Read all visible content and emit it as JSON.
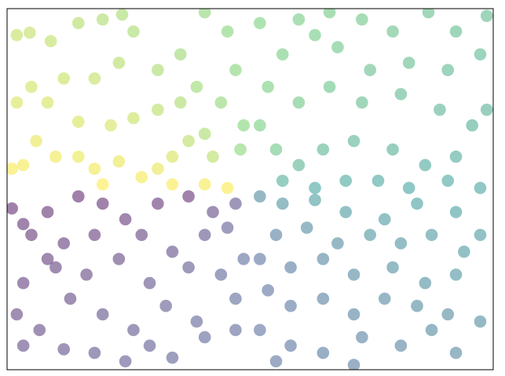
{
  "chart_data": {
    "type": "scatter",
    "colormap": "viridis",
    "alpha": 0.5,
    "xlim": [
      -1.5,
      1.5
    ],
    "ylim": [
      -1.5,
      1.5
    ],
    "x": [
      -1.44,
      -1.36,
      -1.23,
      -1.06,
      -0.91,
      -0.79,
      -0.72,
      -0.81,
      -0.96,
      -1.15,
      -1.35,
      -1.44,
      -1.25,
      -1.06,
      -0.86,
      -0.72,
      -0.57,
      -0.43,
      -0.33,
      -0.57,
      -0.43,
      -0.28,
      -0.14,
      -0.09,
      -0.18,
      -0.28,
      -0.38,
      -0.48,
      -0.57,
      -0.67,
      -0.81,
      -0.96,
      -1.06,
      -1.2,
      -1.32,
      -1.4,
      -1.47,
      -0.91,
      -0.48,
      -0.14,
      -0.28,
      -0.23,
      -0.06,
      -0.04,
      0.06,
      0.3,
      0.49,
      0.69,
      0.88,
      1.1,
      1.27,
      1.42,
      1.22,
      0.98,
      0.74,
      0.54,
      0.4,
      0.2,
      0.11,
      0.3,
      0.49,
      0.69,
      0.93,
      1.17,
      1.37,
      1.27,
      1.08,
      0.88,
      0.64,
      0.45,
      0.3,
      0.16,
      0.06,
      0.2,
      0.4,
      0.59,
      0.79,
      0.98,
      1.22,
      1.42,
      1.46,
      1.46,
      -1.47,
      -1.4,
      -1.25,
      -1.06,
      -0.91,
      -0.77,
      -0.57,
      -0.38,
      -0.23,
      -0.09,
      -1.35,
      -1.15,
      -0.96,
      -0.67,
      -0.48,
      -0.28,
      -0.14,
      -1.4,
      -1.2,
      -1.01,
      -0.81,
      -0.62,
      -0.38,
      -0.18,
      -0.04,
      -1.44,
      -1.3,
      -1.11,
      -0.91,
      -0.72,
      -0.52,
      -0.33,
      -0.09,
      -1.4,
      -1.15,
      -0.96,
      -0.77,
      -0.48,
      -0.28,
      -0.09,
      -0.62,
      -1.25,
      0.06,
      0.2,
      0.4,
      0.59,
      0.83,
      1.03,
      1.27,
      1.42,
      1.32,
      1.12,
      0.93,
      0.74,
      0.54,
      0.35,
      0.16,
      0.06,
      0.25,
      0.45,
      0.64,
      0.88,
      1.08,
      1.27,
      1.42,
      1.22,
      1.03,
      0.83,
      0.64,
      0.45,
      0.25,
      0.11,
      0.06,
      0.25,
      0.45,
      0.69,
      0.93,
      1.12,
      1.27,
      0.64,
      0.16
    ],
    "y": [
      1.28,
      1.3,
      1.23,
      1.38,
      1.41,
      1.45,
      1.31,
      1.05,
      0.92,
      0.92,
      0.85,
      0.72,
      0.72,
      0.56,
      0.53,
      0.59,
      0.66,
      0.72,
      0.85,
      0.99,
      1.12,
      1.47,
      1.31,
      0.99,
      0.72,
      0.46,
      0.4,
      0.27,
      0.17,
      0.1,
      0.23,
      0.17,
      0.27,
      0.27,
      0.4,
      0.2,
      0.17,
      0.04,
      0.04,
      0.01,
      0.04,
      0.27,
      0.33,
      0.53,
      1.38,
      1.41,
      1.47,
      1.41,
      1.31,
      1.47,
      1.31,
      1.12,
      0.99,
      1.05,
      0.99,
      1.18,
      1.28,
      1.12,
      0.85,
      0.72,
      0.85,
      0.72,
      0.79,
      0.66,
      0.53,
      0.27,
      0.2,
      0.33,
      0.4,
      0.33,
      0.2,
      0.33,
      0.53,
      0.07,
      0.01,
      0.07,
      0.07,
      0.01,
      0.07,
      0.01,
      0.66,
      1.44,
      -0.16,
      -0.29,
      -0.19,
      -0.06,
      -0.12,
      -0.25,
      -0.12,
      -0.06,
      -0.19,
      -0.12,
      -0.38,
      -0.45,
      -0.38,
      -0.38,
      -0.52,
      -0.38,
      -0.32,
      -0.78,
      -0.65,
      -0.71,
      -0.58,
      -0.78,
      -0.65,
      -0.71,
      -0.58,
      -1.04,
      -1.17,
      -0.91,
      -1.04,
      -1.17,
      -0.97,
      -1.1,
      -0.91,
      -1.3,
      -1.33,
      -1.36,
      -1.43,
      -1.4,
      -1.23,
      -1.17,
      -1.3,
      -0.58,
      -0.06,
      -0.12,
      -0.09,
      -0.19,
      -0.25,
      -0.12,
      -0.19,
      -0.38,
      -0.52,
      -0.38,
      -0.45,
      -0.38,
      -0.45,
      -0.32,
      -0.38,
      -0.58,
      -0.65,
      -0.58,
      -0.71,
      -0.65,
      -0.78,
      -0.71,
      -1.1,
      -1.04,
      -0.97,
      -0.91,
      -1.04,
      -0.91,
      -0.97,
      -0.84,
      -1.17,
      -1.3,
      -1.36,
      -1.23,
      -1.3,
      -1.17,
      -1.36,
      -1.46,
      -1.43
    ]
  }
}
